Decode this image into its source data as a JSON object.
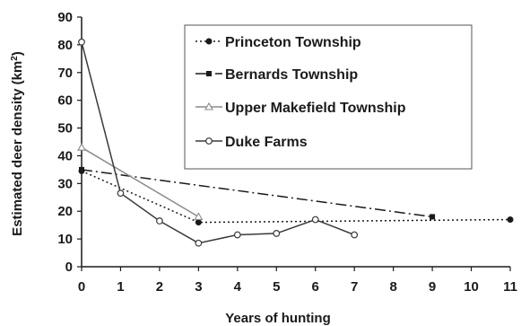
{
  "chart_data": {
    "type": "line",
    "xlabel": "Years of hunting",
    "ylabel": "Estimated deer density (km²)",
    "ylabel_parts": {
      "main": "Estimated deer density (km",
      "sup": "2",
      "tail": ")"
    },
    "xlim": [
      0,
      11
    ],
    "ylim": [
      0,
      90
    ],
    "xticks": [
      "0",
      "1",
      "2",
      "3",
      "4",
      "5",
      "6",
      "7",
      "8",
      "9",
      "10",
      "11"
    ],
    "yticks": [
      "0",
      "10",
      "20",
      "30",
      "40",
      "50",
      "60",
      "70",
      "80",
      "90"
    ],
    "grid": false,
    "legend_position": "top-center",
    "series": [
      {
        "name": "Princeton Township",
        "color": "#1a1a1a",
        "line_style": "dotted",
        "marker": "filled-circle",
        "points": [
          [
            0,
            34.5
          ],
          [
            3,
            16
          ],
          [
            11,
            17
          ]
        ]
      },
      {
        "name": "Bernards Township",
        "color": "#1a1a1a",
        "line_style": "dash-dot",
        "marker": "filled-square",
        "points": [
          [
            0,
            35
          ],
          [
            9,
            18
          ]
        ]
      },
      {
        "name": "Upper Makefield Township",
        "color": "#8a8a8a",
        "line_style": "solid",
        "marker": "open-triangle",
        "points": [
          [
            0,
            43
          ],
          [
            3,
            18
          ]
        ]
      },
      {
        "name": "Duke Farms",
        "color": "#3a3a3a",
        "line_style": "solid",
        "marker": "open-circle",
        "points": [
          [
            0,
            81
          ],
          [
            1,
            26.5
          ],
          [
            2,
            16.5
          ],
          [
            3,
            8.5
          ],
          [
            4,
            11.5
          ],
          [
            5,
            12
          ],
          [
            6,
            17
          ],
          [
            7,
            11.5
          ]
        ]
      }
    ]
  }
}
